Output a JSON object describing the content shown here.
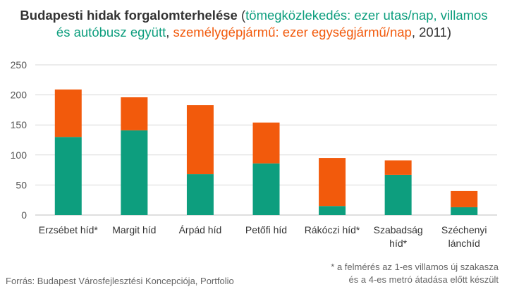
{
  "title": {
    "bold": "Budapesti hidak forgalomterhelése",
    "open": " (",
    "transit": "tömegközlekedés: ezer utas/nap, villamos és autóbusz együtt",
    "sep": ", ",
    "cars": "személygépjármű: ezer egységjármű/nap",
    "year": ", 2011)"
  },
  "colors": {
    "transit": "#0d9e7e",
    "cars": "#f25a0c",
    "grid": "#d9d9d9",
    "text": "#333333"
  },
  "chart_data": {
    "type": "bar",
    "stacked": true,
    "title": "Budapesti hidak forgalomterhelése",
    "categories": [
      "Erzsébet híd*",
      "Margit híd",
      "Árpád híd",
      "Petőfi híd",
      "Rákóczi híd*",
      "Szabadság híd*",
      "Széchenyi lánchíd"
    ],
    "series": [
      {
        "name": "tömegközlekedés: ezer utas/nap, villamos és autóbusz együtt",
        "color": "#0d9e7e",
        "values": [
          130,
          141,
          68,
          86,
          15,
          67,
          13
        ]
      },
      {
        "name": "személygépjármű: ezer egységjármű/nap",
        "color": "#f25a0c",
        "values": [
          79,
          55,
          115,
          68,
          80,
          24,
          27
        ]
      }
    ],
    "ylim": [
      0,
      250
    ],
    "yticks": [
      "0",
      "50",
      "100",
      "150",
      "200",
      "250"
    ],
    "grid": true,
    "legend": "none"
  },
  "source": "Forrás: Budapest Városfejlesztési Koncepciója, Portfolio",
  "footnote": {
    "line1": "* a felmérés az 1-es villamos új szakasza",
    "line2": "és a 4-es metró átadása előtt készült"
  }
}
